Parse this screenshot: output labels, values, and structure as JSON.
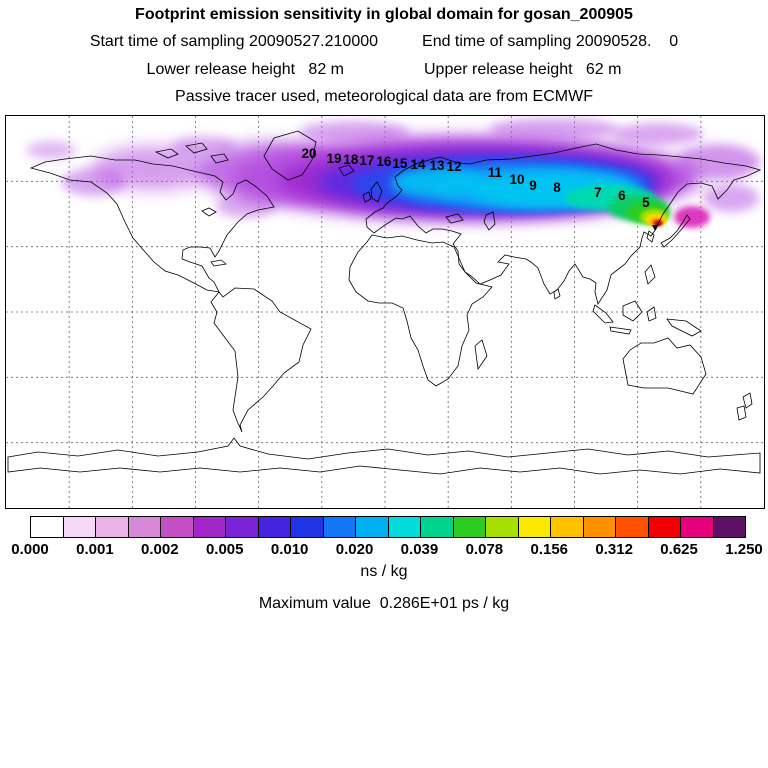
{
  "chart_data": {
    "type": "heatmap",
    "title": "Footprint emission sensitivity in global domain for gosan_200905",
    "subtitle_start_end": {
      "left": "Start time of sampling 20090527.210000",
      "right": "End time of sampling 20090528.    0"
    },
    "subtitle_heights": {
      "left": "Lower release height   82 m",
      "right": "Upper release height   62 m"
    },
    "subtitle_tracer": "Passive tracer used, meteorological data are from ECMWF",
    "units_label": "ns / kg",
    "max_value_label": "Maximum value  0.286E+01 ps / kg",
    "grid": {
      "lon_step_deg": 30,
      "lat_step_deg": 30,
      "style": "dashed"
    },
    "colorbar": {
      "orientation": "horizontal",
      "units": "ns / kg",
      "tick_labels": [
        "0.000",
        "0.001",
        "0.002",
        "0.005",
        "0.010",
        "0.020",
        "0.039",
        "0.078",
        "0.156",
        "0.312",
        "0.625",
        "1.250"
      ],
      "tick_values": [
        0.0,
        0.001,
        0.002,
        0.005,
        0.01,
        0.02,
        0.039,
        0.078,
        0.156,
        0.312,
        0.625,
        1.25
      ],
      "cell_colors": [
        "#ffffff",
        "#f6d9f6",
        "#e9b2e9",
        "#d987d9",
        "#c44fc4",
        "#a127c9",
        "#7a22d4",
        "#4422e0",
        "#2233e6",
        "#1177f5",
        "#00b0f0",
        "#00dcdc",
        "#00d48c",
        "#2ecc1f",
        "#a6e000",
        "#fce800",
        "#ffc000",
        "#ff9000",
        "#ff5000",
        "#ee0000",
        "#e6007d",
        "#5c1066"
      ]
    },
    "trajectory_hour_marks": [
      {
        "label": "20",
        "lon": -36.1,
        "lat": 70.7
      },
      {
        "label": "19",
        "lon": -24.2,
        "lat": 68.4
      },
      {
        "label": "18",
        "lon": -16.2,
        "lat": 68.0
      },
      {
        "label": "17",
        "lon": -8.6,
        "lat": 67.5
      },
      {
        "label": "16",
        "lon": -0.5,
        "lat": 67.0
      },
      {
        "label": "15",
        "lon": 7.1,
        "lat": 66.1
      },
      {
        "label": "14",
        "lon": 15.7,
        "lat": 65.7
      },
      {
        "label": "13",
        "lon": 24.7,
        "lat": 65.2
      },
      {
        "label": "12",
        "lon": 32.8,
        "lat": 64.7
      },
      {
        "label": "11",
        "lon": 52.2,
        "lat": 62.0
      },
      {
        "label": "10",
        "lon": 62.7,
        "lat": 58.8
      },
      {
        "label": "9",
        "lon": 70.3,
        "lat": 56.0
      },
      {
        "label": "8",
        "lon": 81.7,
        "lat": 55.1
      },
      {
        "label": "7",
        "lon": 101.1,
        "lat": 52.8
      },
      {
        "label": "6",
        "lon": 112.5,
        "lat": 51.4
      },
      {
        "label": "5",
        "lon": 123.9,
        "lat": 48.2
      }
    ]
  }
}
